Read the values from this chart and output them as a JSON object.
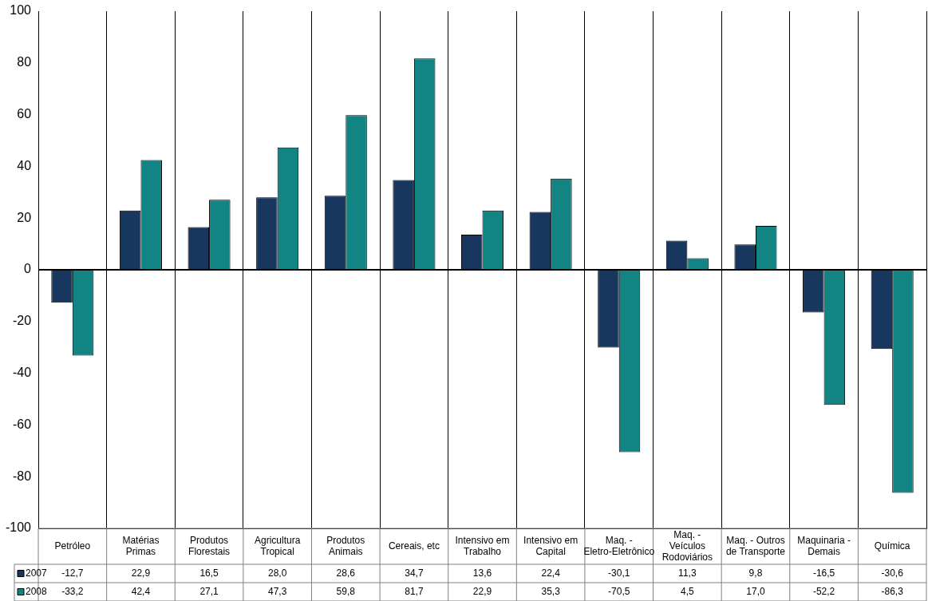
{
  "chart_data": {
    "type": "bar",
    "categories": [
      "Petróleo",
      "Matérias Primas",
      "Produtos Florestais",
      "Agricultura Tropical",
      "Produtos Animais",
      "Cereais, etc",
      "Intensivo em Trabalho",
      "Intensivo em Capital",
      "Maq. - Eletro-Eletrônico",
      "Maq. - Veículos Rodoviários",
      "Maq. - Outros de Transporte",
      "Maquinaria - Demais",
      "Química"
    ],
    "series": [
      {
        "name": "2007",
        "color": "#17375e",
        "values": [
          -12.7,
          22.9,
          16.5,
          28.0,
          28.6,
          34.7,
          13.6,
          22.4,
          -30.1,
          11.3,
          9.8,
          -16.5,
          -30.6
        ],
        "value_labels": [
          "-12,7",
          "22,9",
          "16,5",
          "28,0",
          "28,6",
          "34,7",
          "13,6",
          "22,4",
          "-30,1",
          "11,3",
          "9,8",
          "-16,5",
          "-30,6"
        ]
      },
      {
        "name": "2008",
        "color": "#138484",
        "values": [
          -33.2,
          42.4,
          27.1,
          47.3,
          59.8,
          81.7,
          22.9,
          35.3,
          -70.5,
          4.5,
          17.0,
          -52.2,
          -86.3
        ],
        "value_labels": [
          "-33,2",
          "42,4",
          "27,1",
          "47,3",
          "59,8",
          "81,7",
          "22,9",
          "35,3",
          "-70,5",
          "4,5",
          "17,0",
          "-52,2",
          "-86,3"
        ]
      }
    ],
    "ylim": [
      -100,
      100
    ],
    "yticks": [
      -100,
      -80,
      -60,
      -40,
      -20,
      0,
      20,
      40,
      60,
      80,
      100
    ],
    "grid": "x",
    "legend": "bottom left"
  }
}
